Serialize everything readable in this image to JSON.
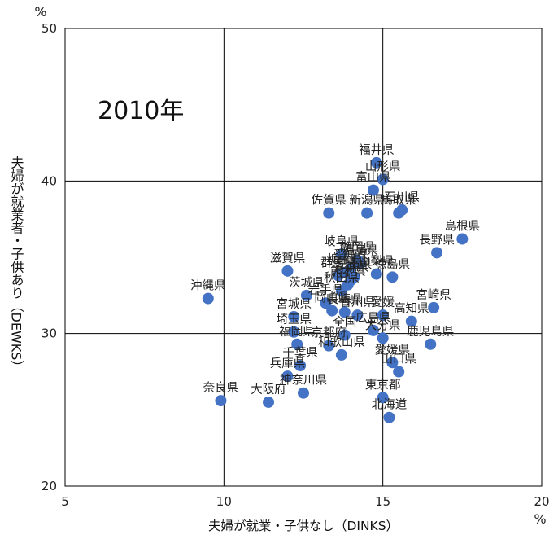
{
  "chart_data": {
    "type": "scatter",
    "title": "2010年",
    "xlabel": "夫婦が就業・子供なし（DINKS）",
    "ylabel": "夫婦が就業者・子供あり（DEWKS）",
    "x_unit": "%",
    "y_unit": "%",
    "xlim": [
      5,
      20
    ],
    "ylim": [
      20,
      50
    ],
    "x_ticks": [
      "5",
      "10",
      "15",
      "20"
    ],
    "y_ticks": [
      "20",
      "30",
      "40",
      "50"
    ],
    "grid": true,
    "marker_color": "#4472C4",
    "points": [
      {
        "label": "福井県",
        "x": 14.8,
        "y": 41.2
      },
      {
        "label": "山形県",
        "x": 15.0,
        "y": 40.1
      },
      {
        "label": "富山県",
        "x": 14.7,
        "y": 39.4
      },
      {
        "label": "新潟県",
        "x": 14.5,
        "y": 37.9
      },
      {
        "label": "鳥取県",
        "x": 15.5,
        "y": 37.9
      },
      {
        "label": "佐賀県",
        "x": 13.3,
        "y": 37.9
      },
      {
        "label": "石川県",
        "x": 15.6,
        "y": 38.1
      },
      {
        "label": "島根県",
        "x": 17.5,
        "y": 36.2
      },
      {
        "label": "長野県",
        "x": 16.7,
        "y": 35.3
      },
      {
        "label": "岐阜県",
        "x": 13.7,
        "y": 35.2
      },
      {
        "label": "静岡県",
        "x": 14.2,
        "y": 34.8
      },
      {
        "label": "福島県",
        "x": 14.3,
        "y": 34.6
      },
      {
        "label": "愛知県",
        "x": 14.0,
        "y": 34.3
      },
      {
        "label": "群馬県",
        "x": 13.6,
        "y": 33.8
      },
      {
        "label": "栃木県",
        "x": 13.8,
        "y": 34.0
      },
      {
        "label": "三重県",
        "x": 14.1,
        "y": 33.7
      },
      {
        "label": "山梨県",
        "x": 14.8,
        "y": 33.9
      },
      {
        "label": "徳島県",
        "x": 15.3,
        "y": 33.7
      },
      {
        "label": "滋賀県",
        "x": 12.0,
        "y": 34.1
      },
      {
        "label": "熊本県",
        "x": 13.9,
        "y": 33.2
      },
      {
        "label": "茨城県",
        "x": 12.6,
        "y": 32.5
      },
      {
        "label": "秋田県",
        "x": 13.7,
        "y": 32.8
      },
      {
        "label": "青森県",
        "x": 14.0,
        "y": 33.5
      },
      {
        "label": "宮崎県",
        "x": 16.6,
        "y": 31.7
      },
      {
        "label": "沖縄県",
        "x": 9.5,
        "y": 32.3
      },
      {
        "label": "岩手県",
        "x": 13.2,
        "y": 32.0
      },
      {
        "label": "宮城県",
        "x": 12.2,
        "y": 31.1
      },
      {
        "label": "岡山県",
        "x": 13.4,
        "y": 31.5
      },
      {
        "label": "長崎県",
        "x": 13.8,
        "y": 31.4
      },
      {
        "label": "香川県",
        "x": 14.2,
        "y": 31.2
      },
      {
        "label": "愛媛",
        "x": 15.0,
        "y": 31.2
      },
      {
        "label": "高知県",
        "x": 15.9,
        "y": 30.8
      },
      {
        "label": "埼玉県",
        "x": 12.2,
        "y": 30.1
      },
      {
        "label": "全国",
        "x": 13.8,
        "y": 29.9
      },
      {
        "label": "広島県",
        "x": 14.7,
        "y": 30.2
      },
      {
        "label": "大分県",
        "x": 15.0,
        "y": 29.7
      },
      {
        "label": "福岡県",
        "x": 12.3,
        "y": 29.3
      },
      {
        "label": "京都府",
        "x": 13.3,
        "y": 29.2
      },
      {
        "label": "鹿児島県",
        "x": 16.5,
        "y": 29.3
      },
      {
        "label": "千葉県",
        "x": 12.4,
        "y": 27.9
      },
      {
        "label": "和歌山県",
        "x": 13.7,
        "y": 28.6
      },
      {
        "label": "愛媛県",
        "x": 15.3,
        "y": 28.1
      },
      {
        "label": "兵庫県",
        "x": 12.0,
        "y": 27.2
      },
      {
        "label": "山口県",
        "x": 15.5,
        "y": 27.5
      },
      {
        "label": "奈良県",
        "x": 9.9,
        "y": 25.6
      },
      {
        "label": "大阪府",
        "x": 11.4,
        "y": 25.5
      },
      {
        "label": "神奈川県",
        "x": 12.5,
        "y": 26.1
      },
      {
        "label": "東京都",
        "x": 15.0,
        "y": 25.8
      },
      {
        "label": "北海道",
        "x": 15.2,
        "y": 24.5
      }
    ]
  }
}
